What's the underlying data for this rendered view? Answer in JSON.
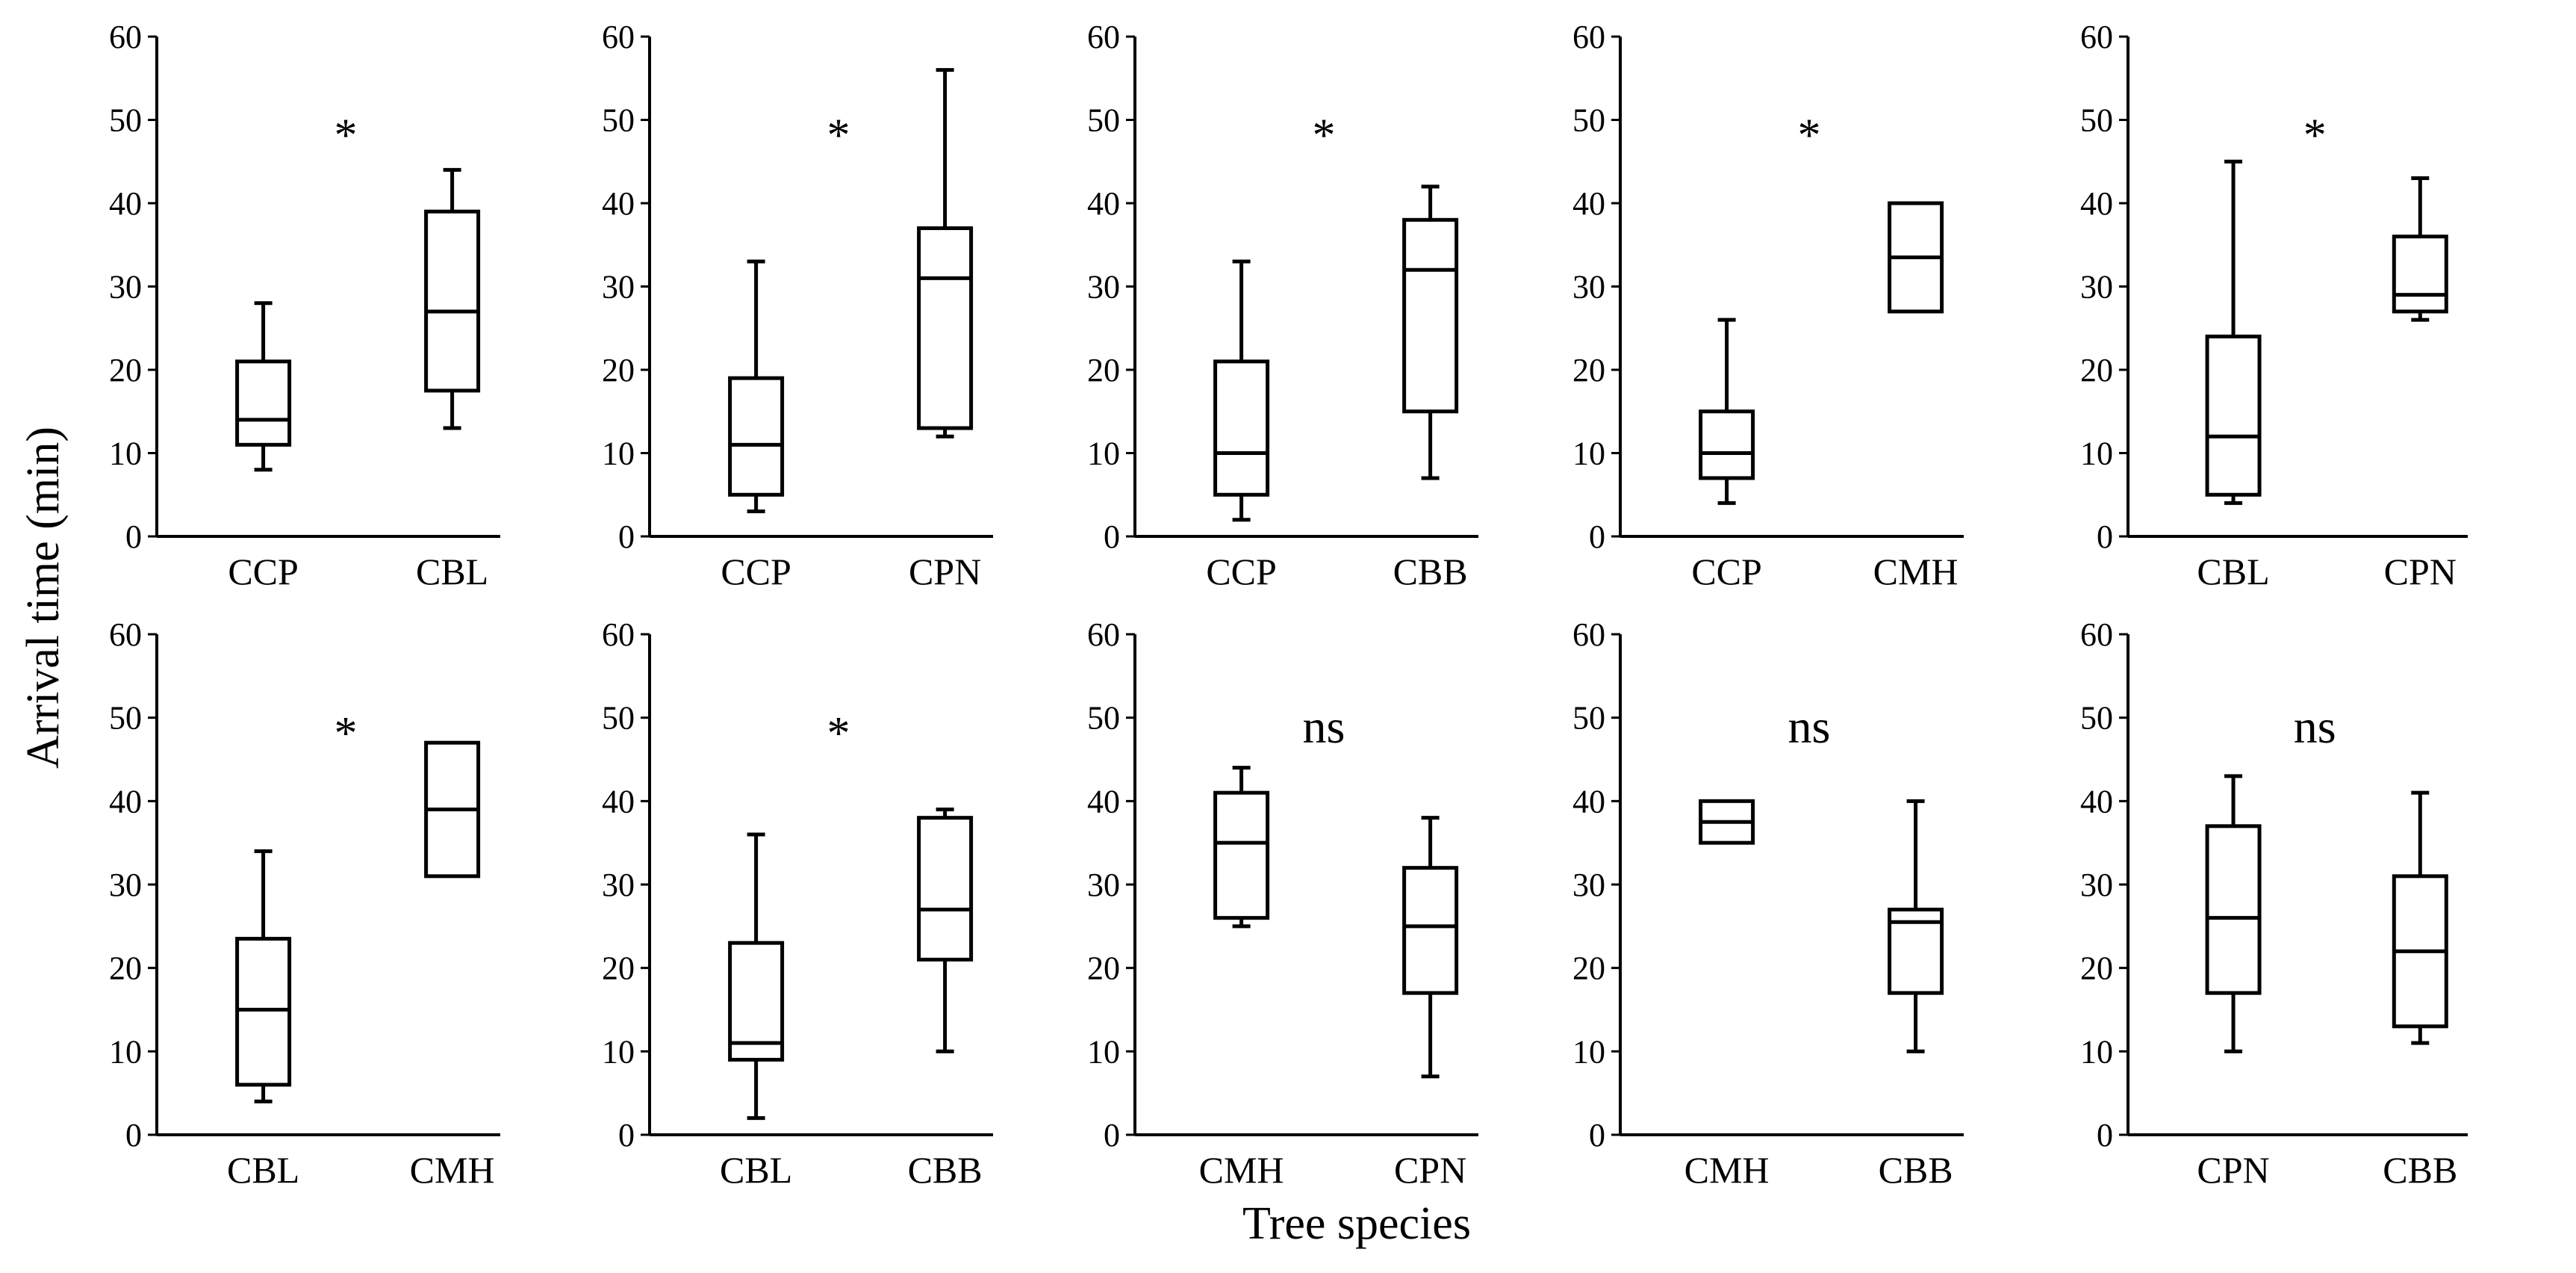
{
  "chart_data": {
    "type": "box",
    "ylabel": "Arrival time (min)",
    "xlabel": "Tree species",
    "ylim": [
      0,
      60
    ],
    "yticks": [
      0,
      10,
      20,
      30,
      40,
      50,
      60
    ],
    "panels": [
      {
        "id": "p1",
        "significance": "*",
        "categories": [
          "CCP",
          "CBL"
        ],
        "boxes": [
          {
            "min": 8,
            "q1": 11,
            "median": 14,
            "q3": 21,
            "max": 28
          },
          {
            "min": 13,
            "q1": 17.5,
            "median": 27,
            "q3": 39,
            "max": 44
          }
        ]
      },
      {
        "id": "p2",
        "significance": "*",
        "categories": [
          "CCP",
          "CPN"
        ],
        "boxes": [
          {
            "min": 3,
            "q1": 5,
            "median": 11,
            "q3": 19,
            "max": 33
          },
          {
            "min": 12,
            "q1": 13,
            "median": 31,
            "q3": 37,
            "max": 56
          }
        ]
      },
      {
        "id": "p3",
        "significance": "*",
        "categories": [
          "CCP",
          "CBB"
        ],
        "boxes": [
          {
            "min": 2,
            "q1": 5,
            "median": 10,
            "q3": 21,
            "max": 33
          },
          {
            "min": 7,
            "q1": 15,
            "median": 32,
            "q3": 38,
            "max": 42
          }
        ]
      },
      {
        "id": "p4",
        "significance": "*",
        "categories": [
          "CCP",
          "CMH"
        ],
        "boxes": [
          {
            "min": 4,
            "q1": 7,
            "median": 10,
            "q3": 15,
            "max": 26
          },
          {
            "min": 27,
            "q1": 27,
            "median": 33.5,
            "q3": 40,
            "max": 40
          }
        ]
      },
      {
        "id": "p5",
        "significance": "*",
        "categories": [
          "CBL",
          "CPN"
        ],
        "boxes": [
          {
            "min": 4,
            "q1": 5,
            "median": 12,
            "q3": 24,
            "max": 45
          },
          {
            "min": 26,
            "q1": 27,
            "median": 29,
            "q3": 36,
            "max": 43
          }
        ]
      },
      {
        "id": "p6",
        "significance": "*",
        "categories": [
          "CBL",
          "CMH"
        ],
        "boxes": [
          {
            "min": 4,
            "q1": 6,
            "median": 15,
            "q3": 23.5,
            "max": 34
          },
          {
            "min": 31,
            "q1": 31,
            "median": 39,
            "q3": 47,
            "max": 47
          }
        ]
      },
      {
        "id": "p7",
        "significance": "*",
        "categories": [
          "CBL",
          "CBB"
        ],
        "boxes": [
          {
            "min": 2,
            "q1": 9,
            "median": 11,
            "q3": 23,
            "max": 36
          },
          {
            "min": 10,
            "q1": 21,
            "median": 27,
            "q3": 38,
            "max": 39
          }
        ]
      },
      {
        "id": "p8",
        "significance": "ns",
        "categories": [
          "CMH",
          "CPN"
        ],
        "boxes": [
          {
            "min": 25,
            "q1": 26,
            "median": 35,
            "q3": 41,
            "max": 44
          },
          {
            "min": 7,
            "q1": 17,
            "median": 25,
            "q3": 32,
            "max": 38
          }
        ]
      },
      {
        "id": "p9",
        "significance": "ns",
        "categories": [
          "CMH",
          "CBB"
        ],
        "boxes": [
          {
            "min": 35,
            "q1": 35,
            "median": 37.5,
            "q3": 40,
            "max": 40
          },
          {
            "min": 10,
            "q1": 17,
            "median": 25.5,
            "q3": 27,
            "max": 40
          }
        ]
      },
      {
        "id": "p10",
        "significance": "ns",
        "categories": [
          "CPN",
          "CBB"
        ],
        "boxes": [
          {
            "min": 10,
            "q1": 17,
            "median": 26,
            "q3": 37,
            "max": 43
          },
          {
            "min": 11,
            "q1": 13,
            "median": 22,
            "q3": 31,
            "max": 41
          }
        ]
      }
    ]
  }
}
